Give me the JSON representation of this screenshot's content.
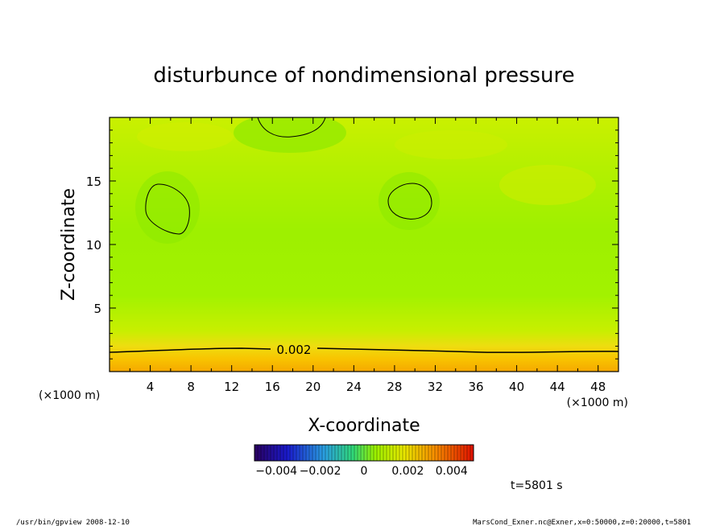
{
  "chart_data": {
    "type": "heatmap",
    "title": "disturbunce of nondimensional pressure",
    "xlabel": "X-coordinate",
    "ylabel": "Z-coordinate",
    "x_unit_left": "(×1000 m)",
    "x_unit_right": "(×1000 m)",
    "xlim": [
      0,
      50
    ],
    "ylim": [
      0,
      20
    ],
    "x_ticks": [
      4,
      8,
      12,
      16,
      20,
      24,
      28,
      32,
      36,
      40,
      44,
      48
    ],
    "y_ticks": [
      5,
      10,
      15
    ],
    "contour_label": "0.002",
    "colorbar": {
      "range": [
        -0.005,
        0.005
      ],
      "tick_labels": [
        "−0.004",
        "−0.002",
        "0",
        "0.002",
        "0.004"
      ],
      "tick_values": [
        -0.004,
        -0.002,
        0,
        0.002,
        0.004
      ]
    },
    "time_label": "t=5801 s",
    "footer_left": "/usr/bin/gpview   2008-12-10",
    "footer_right": "MarsCond_Exner.nc@Exner,x=0:50000,z=0:20000,t=5801"
  }
}
